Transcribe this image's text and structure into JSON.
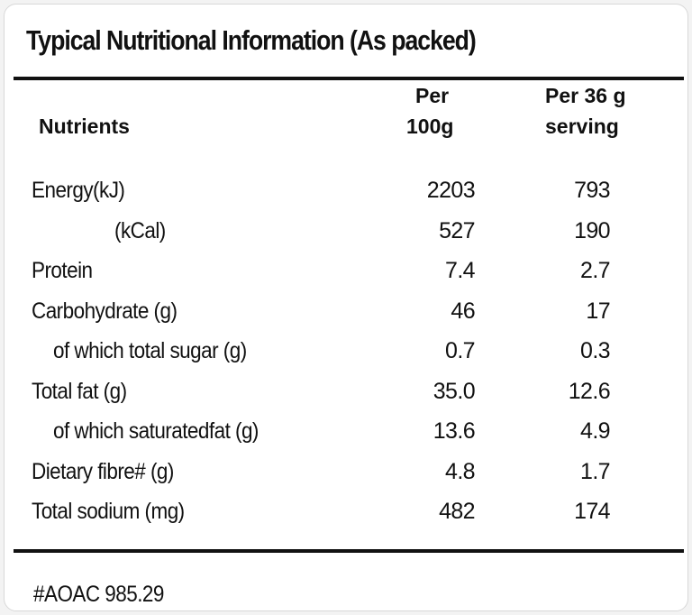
{
  "title": "Typical Nutritional Information (As packed)",
  "header": {
    "nutrients": "Nutrients",
    "per_100g": [
      "Per",
      "100g"
    ],
    "per_serving": [
      "Per 36 g",
      "serving"
    ]
  },
  "rows": [
    [
      "Energy(kJ)",
      "2203",
      "793"
    ],
    [
      "(kCal)",
      "527",
      "190"
    ],
    [
      "Protein",
      "7.4",
      "2.7"
    ],
    [
      "Carbohydrate (g)",
      "46",
      "17"
    ],
    [
      "of which total sugar (g)",
      "0.7",
      "0.3"
    ],
    [
      "Total fat (g)",
      "35.0",
      "12.6"
    ],
    [
      "of which saturatedfat (g)",
      "13.6",
      "4.9"
    ],
    [
      "Dietary fibre# (g)",
      "4.8",
      "1.7"
    ],
    [
      "Total sodium (mg)",
      "482",
      "174"
    ]
  ],
  "footnote": "#AOAC 985.29"
}
